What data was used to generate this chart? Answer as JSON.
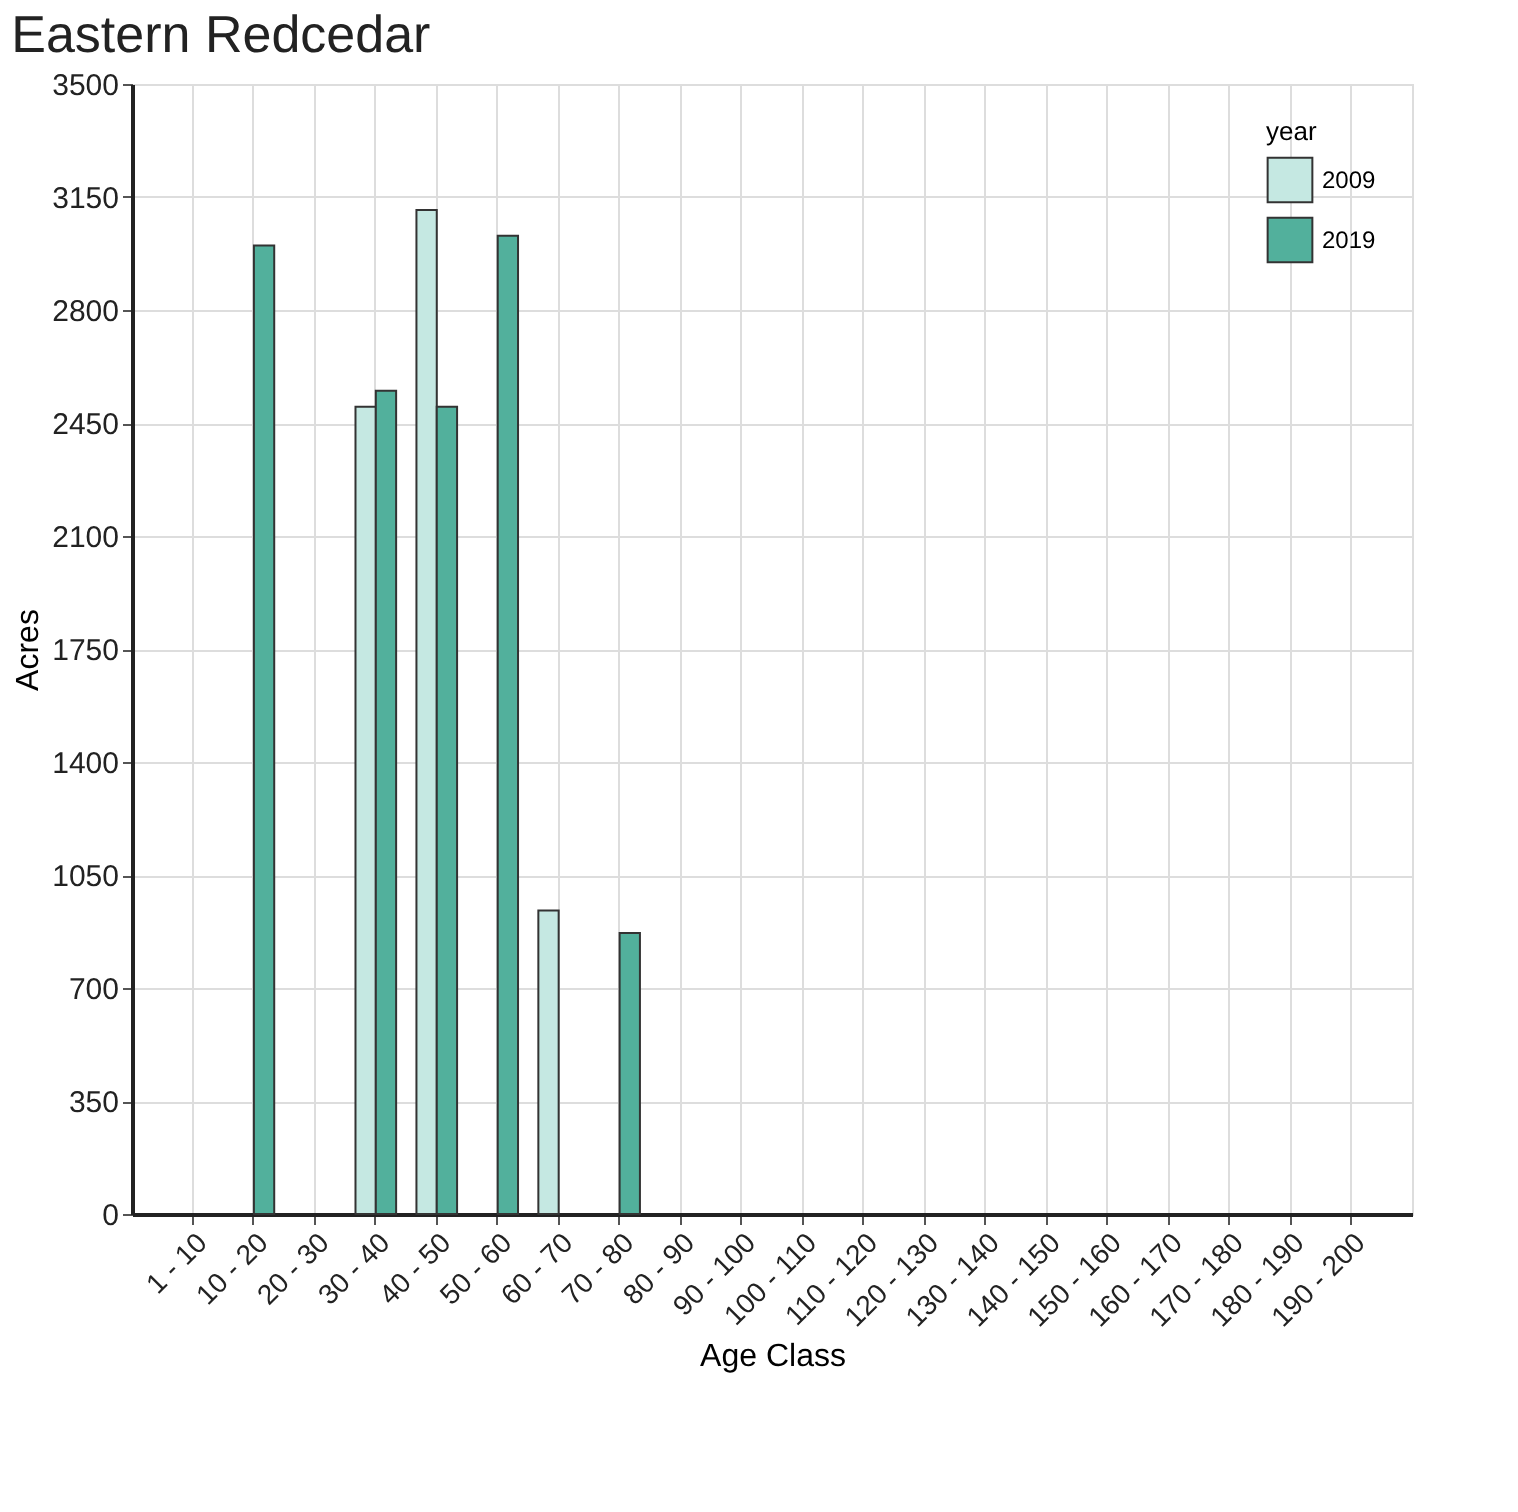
{
  "chart_data": {
    "type": "bar",
    "title": "Eastern Redcedar",
    "xlabel": "Age Class",
    "ylabel": "Acres",
    "legend_title": "year",
    "categories": [
      "1 - 10",
      "10 - 20",
      "20 - 30",
      "30 - 40",
      "40 - 50",
      "50 - 60",
      "60 - 70",
      "70 - 80",
      "80 - 90",
      "90 - 100",
      "100 - 110",
      "110 - 120",
      "120 - 130",
      "130 - 140",
      "140 - 150",
      "150 - 160",
      "160 - 170",
      "170 - 180",
      "180 - 190",
      "190 - 200"
    ],
    "series": [
      {
        "name": "2009",
        "color": "#c5e8e2",
        "values": [
          0,
          0,
          0,
          2500,
          3110,
          0,
          940,
          0,
          0,
          0,
          0,
          0,
          0,
          0,
          0,
          0,
          0,
          0,
          0,
          0
        ]
      },
      {
        "name": "2019",
        "color": "#52b09c",
        "values": [
          0,
          3000,
          0,
          2550,
          2500,
          3030,
          0,
          870,
          0,
          0,
          0,
          0,
          0,
          0,
          0,
          0,
          0,
          0,
          0,
          0
        ]
      }
    ],
    "ylim": [
      0,
      3500
    ],
    "yticks": [
      0,
      350,
      700,
      1050,
      1400,
      1750,
      2100,
      2450,
      2800,
      3150,
      3500
    ],
    "grid": true,
    "legend": "top right"
  }
}
